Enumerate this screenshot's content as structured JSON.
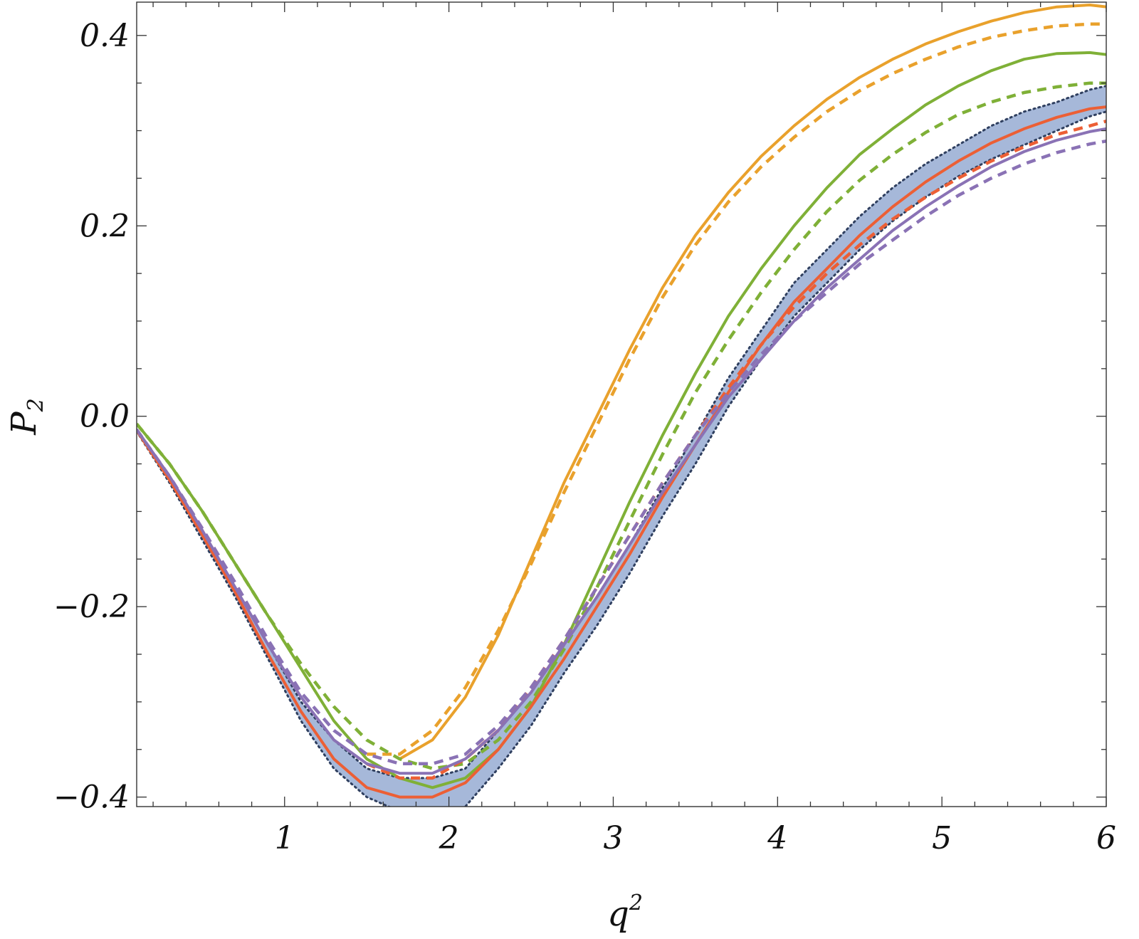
{
  "chart_data": {
    "type": "line",
    "title": "",
    "xlabel": "q",
    "xlabel_superscript": "2",
    "ylabel": "P",
    "ylabel_subscript": "2",
    "xlim": [
      0.1,
      6.0
    ],
    "ylim": [
      -0.41,
      0.435
    ],
    "x_ticks": [
      {
        "value": 1,
        "label": "1"
      },
      {
        "value": 2,
        "label": "2"
      },
      {
        "value": 3,
        "label": "3"
      },
      {
        "value": 4,
        "label": "4"
      },
      {
        "value": 5,
        "label": "5"
      },
      {
        "value": 6,
        "label": "6"
      }
    ],
    "y_ticks": [
      {
        "value": -0.4,
        "label": "−0.4"
      },
      {
        "value": -0.2,
        "label": "−0.2"
      },
      {
        "value": 0.0,
        "label": "0.0"
      },
      {
        "value": 0.2,
        "label": "0.2"
      },
      {
        "value": 0.4,
        "label": "0.4"
      }
    ],
    "grid": false,
    "legend": "none",
    "band": {
      "color": "#a6b8d9",
      "edge_color": "#2f3f5f",
      "x": [
        0.1,
        0.3,
        0.5,
        0.7,
        0.9,
        1.1,
        1.3,
        1.5,
        1.7,
        1.9,
        2.1,
        2.3,
        2.5,
        2.7,
        2.9,
        3.1,
        3.3,
        3.5,
        3.7,
        3.9,
        4.1,
        4.3,
        4.5,
        4.7,
        4.9,
        5.1,
        5.3,
        5.5,
        5.7,
        5.9,
        6.0
      ],
      "upper": [
        -0.014,
        -0.063,
        -0.12,
        -0.18,
        -0.24,
        -0.3,
        -0.34,
        -0.37,
        -0.38,
        -0.38,
        -0.37,
        -0.33,
        -0.29,
        -0.24,
        -0.19,
        -0.135,
        -0.075,
        -0.02,
        0.04,
        0.09,
        0.14,
        0.175,
        0.21,
        0.24,
        0.265,
        0.285,
        0.305,
        0.32,
        0.33,
        0.343,
        0.347
      ],
      "lower": [
        -0.016,
        -0.07,
        -0.13,
        -0.19,
        -0.255,
        -0.32,
        -0.37,
        -0.4,
        -0.415,
        -0.42,
        -0.41,
        -0.37,
        -0.325,
        -0.27,
        -0.22,
        -0.165,
        -0.105,
        -0.05,
        0.01,
        0.06,
        0.105,
        0.14,
        0.175,
        0.205,
        0.23,
        0.252,
        0.27,
        0.285,
        0.3,
        0.315,
        0.32
      ]
    },
    "series": [
      {
        "color": "#e9a12c",
        "dash": "solid",
        "x": [
          1.7,
          1.9,
          2.1,
          2.3,
          2.5,
          2.7,
          2.9,
          3.1,
          3.3,
          3.5,
          3.7,
          3.9,
          4.1,
          4.3,
          4.5,
          4.7,
          4.9,
          5.1,
          5.3,
          5.5,
          5.7,
          5.9,
          6.0
        ],
        "y": [
          -0.36,
          -0.34,
          -0.295,
          -0.23,
          -0.15,
          -0.07,
          0.0,
          0.07,
          0.135,
          0.19,
          0.235,
          0.273,
          0.305,
          0.333,
          0.356,
          0.375,
          0.391,
          0.404,
          0.415,
          0.424,
          0.43,
          0.432,
          0.43
        ]
      },
      {
        "color": "#e9a12c",
        "dash": "dashed",
        "x": [
          1.5,
          1.7,
          1.9,
          2.1,
          2.3,
          2.5,
          2.7,
          2.9,
          3.1,
          3.3,
          3.5,
          3.7,
          3.9,
          4.1,
          4.3,
          4.5,
          4.7,
          4.9,
          5.1,
          5.3,
          5.5,
          5.7,
          5.9,
          6.0
        ],
        "y": [
          -0.355,
          -0.355,
          -0.33,
          -0.285,
          -0.225,
          -0.155,
          -0.08,
          -0.01,
          0.06,
          0.125,
          0.18,
          0.225,
          0.262,
          0.293,
          0.32,
          0.342,
          0.36,
          0.375,
          0.388,
          0.398,
          0.405,
          0.41,
          0.412,
          0.412
        ]
      },
      {
        "color": "#7fb037",
        "dash": "solid",
        "x": [
          0.1,
          0.3,
          0.5,
          0.7,
          0.9,
          1.1,
          1.3,
          1.5,
          1.7,
          1.9,
          2.1,
          2.3,
          2.5,
          2.7,
          2.9,
          3.1,
          3.3,
          3.5,
          3.7,
          3.9,
          4.1,
          4.3,
          4.5,
          4.7,
          4.9,
          5.1,
          5.3,
          5.5,
          5.7,
          5.9,
          6.0
        ],
        "y": [
          -0.008,
          -0.05,
          -0.1,
          -0.155,
          -0.21,
          -0.265,
          -0.32,
          -0.36,
          -0.38,
          -0.39,
          -0.38,
          -0.35,
          -0.305,
          -0.24,
          -0.165,
          -0.09,
          -0.02,
          0.045,
          0.105,
          0.155,
          0.2,
          0.24,
          0.275,
          0.302,
          0.327,
          0.347,
          0.363,
          0.375,
          0.381,
          0.382,
          0.38
        ]
      },
      {
        "color": "#7fb037",
        "dash": "dashed",
        "x": [
          0.1,
          0.3,
          0.5,
          0.7,
          0.9,
          1.1,
          1.3,
          1.5,
          1.7,
          1.9,
          2.1,
          2.3,
          2.5,
          2.7,
          2.9,
          3.1,
          3.3,
          3.5,
          3.7,
          3.9,
          4.1,
          4.3,
          4.5,
          4.7,
          4.9,
          5.1,
          5.3,
          5.5,
          5.7,
          5.9,
          6.0
        ],
        "y": [
          -0.008,
          -0.05,
          -0.1,
          -0.155,
          -0.21,
          -0.26,
          -0.305,
          -0.34,
          -0.36,
          -0.37,
          -0.365,
          -0.34,
          -0.3,
          -0.245,
          -0.18,
          -0.11,
          -0.04,
          0.025,
          0.08,
          0.13,
          0.175,
          0.215,
          0.248,
          0.275,
          0.298,
          0.317,
          0.33,
          0.34,
          0.346,
          0.35,
          0.35
        ]
      },
      {
        "color": "#ec5f35",
        "dash": "solid",
        "x": [
          0.1,
          0.3,
          0.5,
          0.7,
          0.9,
          1.1,
          1.3,
          1.5,
          1.7,
          1.9,
          2.1,
          2.3,
          2.5,
          2.7,
          2.9,
          3.1,
          3.3,
          3.5,
          3.7,
          3.9,
          4.1,
          4.3,
          4.5,
          4.7,
          4.9,
          5.1,
          5.3,
          5.5,
          5.7,
          5.9,
          6.0
        ],
        "y": [
          -0.015,
          -0.067,
          -0.125,
          -0.185,
          -0.25,
          -0.31,
          -0.36,
          -0.39,
          -0.4,
          -0.4,
          -0.385,
          -0.35,
          -0.305,
          -0.255,
          -0.2,
          -0.145,
          -0.085,
          -0.03,
          0.025,
          0.075,
          0.12,
          0.155,
          0.19,
          0.22,
          0.246,
          0.268,
          0.287,
          0.302,
          0.314,
          0.323,
          0.325
        ]
      },
      {
        "color": "#ec5f35",
        "dash": "dashed",
        "x": [
          1.5,
          1.7,
          1.9,
          2.1,
          2.3,
          2.5,
          2.7,
          2.9,
          3.1,
          3.3,
          3.5,
          3.7,
          3.9,
          4.1,
          4.3,
          4.5,
          4.7,
          4.9,
          5.1,
          5.3,
          5.5,
          5.7,
          5.9,
          6.0
        ],
        "y": [
          -0.365,
          -0.38,
          -0.38,
          -0.36,
          -0.33,
          -0.285,
          -0.235,
          -0.18,
          -0.125,
          -0.07,
          -0.02,
          0.03,
          0.075,
          0.115,
          0.15,
          0.18,
          0.207,
          0.23,
          0.25,
          0.268,
          0.283,
          0.296,
          0.305,
          0.31
        ]
      },
      {
        "color": "#8a72b5",
        "dash": "solid",
        "x": [
          0.1,
          0.3,
          0.5,
          0.7,
          0.9,
          1.1,
          1.3,
          1.5,
          1.7,
          1.9,
          2.1,
          2.3,
          2.5,
          2.7,
          2.9,
          3.1,
          3.3,
          3.5,
          3.7,
          3.9,
          4.1,
          4.3,
          4.5,
          4.7,
          4.9,
          5.1,
          5.3,
          5.5,
          5.7,
          5.9,
          6.0
        ],
        "y": [
          -0.014,
          -0.063,
          -0.12,
          -0.18,
          -0.24,
          -0.295,
          -0.34,
          -0.365,
          -0.375,
          -0.375,
          -0.36,
          -0.33,
          -0.29,
          -0.24,
          -0.19,
          -0.135,
          -0.08,
          -0.03,
          0.02,
          0.06,
          0.1,
          0.135,
          0.165,
          0.195,
          0.22,
          0.242,
          0.262,
          0.278,
          0.29,
          0.299,
          0.302
        ]
      },
      {
        "color": "#8a72b5",
        "dash": "dashed",
        "x": [
          0.1,
          0.3,
          0.5,
          0.7,
          0.9,
          1.1,
          1.3,
          1.5,
          1.7,
          1.9,
          2.1,
          2.3,
          2.5,
          2.7,
          2.9,
          3.1,
          3.3,
          3.5,
          3.7,
          3.9,
          4.1,
          4.3,
          4.5,
          4.7,
          4.9,
          5.1,
          5.3,
          5.5,
          5.7,
          5.9,
          6.0
        ],
        "y": [
          -0.014,
          -0.063,
          -0.118,
          -0.175,
          -0.235,
          -0.29,
          -0.33,
          -0.355,
          -0.365,
          -0.365,
          -0.355,
          -0.325,
          -0.285,
          -0.235,
          -0.18,
          -0.125,
          -0.07,
          -0.02,
          0.025,
          0.065,
          0.1,
          0.13,
          0.16,
          0.185,
          0.21,
          0.232,
          0.25,
          0.265,
          0.277,
          0.286,
          0.289
        ]
      }
    ]
  }
}
